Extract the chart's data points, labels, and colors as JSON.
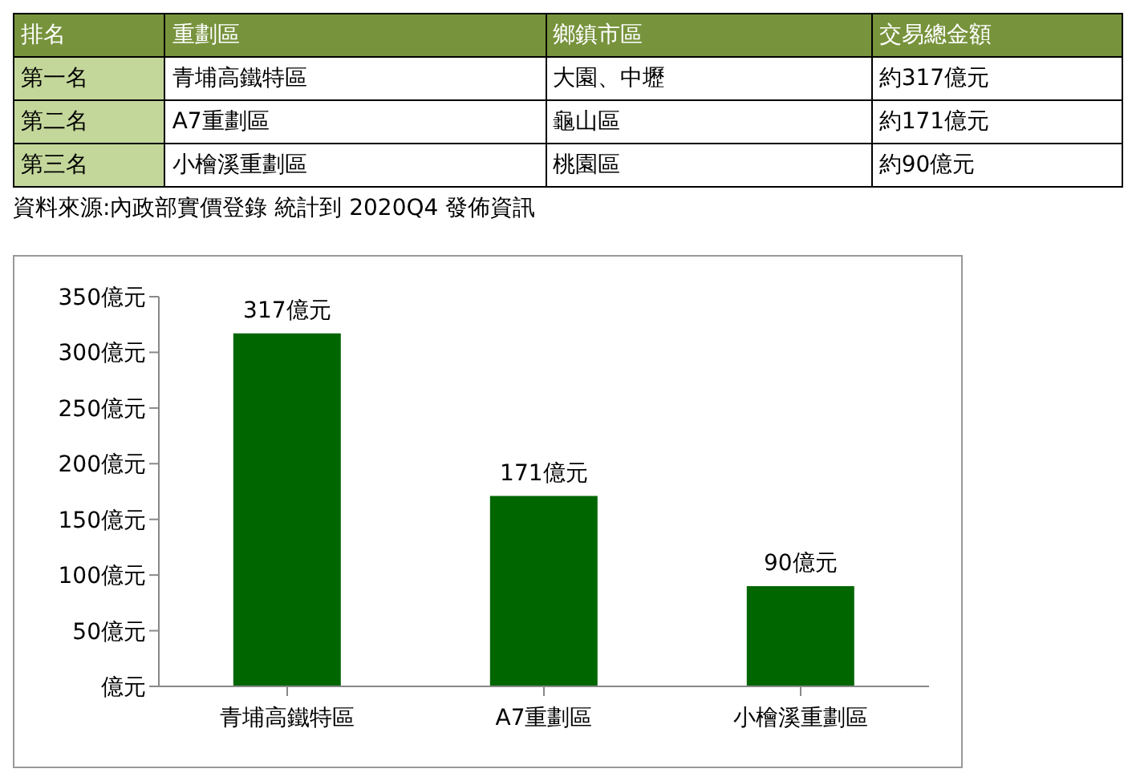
{
  "chart_data": [
    {
      "type": "other",
      "categories": [
        "排名",
        "重劃區",
        "鄉鎮市區",
        "交易總金額"
      ],
      "annotations": [
        "第一名",
        "青埔高鐵特區",
        "大園、中壢",
        "約317億元",
        "第二名",
        "A7重劃區",
        "龜山區",
        "約171億元",
        "第三名",
        "小檜溪重劃區",
        "桃園區",
        "約90億元"
      ]
    },
    {
      "type": "bar",
      "categories": [
        "青埔高鐵特區",
        "A7重劃區",
        "小檜溪重劃區"
      ],
      "values": [
        317,
        171,
        90
      ],
      "color": "#006600",
      "value_labels": [
        "317億元",
        "171億元",
        "90億元"
      ],
      "ylim": [
        0,
        350
      ],
      "yticks": [
        {
          "value": 0,
          "label": "億元"
        },
        {
          "value": 50,
          "label": "50億元"
        },
        {
          "value": 100,
          "label": "100億元"
        },
        {
          "value": 150,
          "label": "150億元"
        },
        {
          "value": 200,
          "label": "200億元"
        },
        {
          "value": 250,
          "label": "250億元"
        },
        {
          "value": 300,
          "label": "300億元"
        },
        {
          "value": 350,
          "label": "350億元"
        }
      ],
      "grid": false,
      "legend": false,
      "annotations": [
        "資料來源:內政部實價登錄 統計到 2020Q4 發佈資訊"
      ]
    }
  ]
}
